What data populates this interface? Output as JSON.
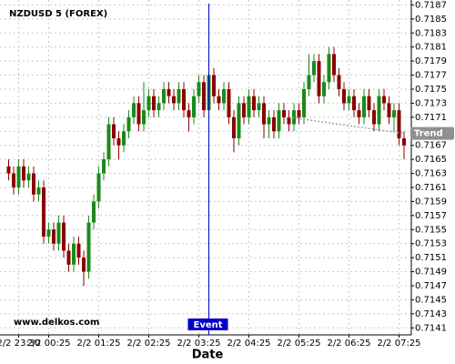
{
  "chart_data": {
    "type": "candlestick",
    "title": "NZDUSD 5 (FOREX)",
    "watermark": "www.delkos.com",
    "x_label": "Date",
    "categories": [
      null,
      null,
      "2/2 23:30",
      null,
      null,
      null,
      null,
      null,
      "2/2 00:25",
      null,
      null,
      null,
      null,
      null,
      null,
      null,
      null,
      null,
      "2/2 01:25",
      null,
      null,
      null,
      null,
      null,
      null,
      null,
      null,
      null,
      "2/2 02:25",
      null,
      null,
      null,
      null,
      null,
      null,
      null,
      null,
      null,
      "2/2 03:25",
      null,
      null,
      null,
      null,
      null,
      null,
      null,
      null,
      null,
      "2/2 04:25",
      null,
      null,
      null,
      null,
      null,
      null,
      null,
      null,
      null,
      "2/2 05:25",
      null,
      null,
      null,
      null,
      null,
      null,
      null,
      null,
      null,
      "2/2 06:25",
      null,
      null,
      null,
      null,
      null,
      null,
      null,
      null,
      null,
      "2/2 07:25",
      null
    ],
    "open": [
      0.7164,
      0.7163,
      0.7161,
      0.7164,
      0.7162,
      0.7163,
      0.716,
      0.7161,
      0.7154,
      0.7155,
      0.7153,
      0.7156,
      0.7152,
      0.715,
      0.7153,
      0.7151,
      0.7149,
      0.7156,
      0.7159,
      0.7163,
      0.7165,
      0.717,
      0.7168,
      0.7167,
      0.7169,
      0.7171,
      0.7173,
      0.717,
      0.7172,
      0.7174,
      0.7172,
      0.7173,
      0.7175,
      0.7174,
      0.7173,
      0.7175,
      0.7172,
      0.7171,
      0.7174,
      0.7176,
      0.7172,
      0.7177,
      0.7174,
      0.7173,
      0.7175,
      0.7171,
      0.7168,
      0.7173,
      0.7171,
      0.7174,
      0.7172,
      0.7173,
      0.717,
      0.7171,
      0.7169,
      0.7172,
      0.7171,
      0.717,
      0.7172,
      0.7171,
      0.7175,
      0.7177,
      0.7179,
      0.7174,
      0.7176,
      0.718,
      0.7177,
      0.7175,
      0.7173,
      0.7174,
      0.7172,
      0.7171,
      0.7174,
      0.7172,
      0.717,
      0.7174,
      0.7173,
      0.7171,
      0.7172,
      0.7168
    ],
    "high": [
      0.7165,
      0.7164,
      0.7165,
      0.7165,
      0.7164,
      0.7164,
      0.7162,
      0.7162,
      0.7156,
      0.7156,
      0.7157,
      0.7157,
      0.7153,
      0.7154,
      0.7154,
      0.7152,
      0.7157,
      0.716,
      0.7164,
      0.7166,
      0.7171,
      0.7171,
      0.7169,
      0.717,
      0.7172,
      0.7174,
      0.7174,
      0.7176,
      0.7175,
      0.7175,
      0.7174,
      0.7176,
      0.7176,
      0.7175,
      0.7176,
      0.7176,
      0.7173,
      0.7175,
      0.7177,
      0.7177,
      0.7178,
      0.7178,
      0.7175,
      0.7176,
      0.7176,
      0.7172,
      0.7174,
      0.7174,
      0.7175,
      0.7175,
      0.7174,
      0.7174,
      0.7172,
      0.7172,
      0.7173,
      0.7173,
      0.7172,
      0.7173,
      0.7173,
      0.7176,
      0.718,
      0.718,
      0.718,
      0.7177,
      0.7181,
      0.7181,
      0.7178,
      0.7176,
      0.7175,
      0.7175,
      0.7173,
      0.7175,
      0.7175,
      0.7173,
      0.7175,
      0.7175,
      0.7174,
      0.7173,
      0.7173,
      0.7169
    ],
    "low": [
      0.7162,
      0.716,
      0.716,
      0.7161,
      0.7161,
      0.7159,
      0.7159,
      0.7153,
      0.7153,
      0.7152,
      0.7152,
      0.7151,
      0.7149,
      0.7149,
      0.715,
      0.7147,
      0.7148,
      0.7155,
      0.7158,
      0.7162,
      0.7164,
      0.7167,
      0.7165,
      0.7166,
      0.7168,
      0.717,
      0.7169,
      0.7169,
      0.7171,
      0.7171,
      0.7171,
      0.7172,
      0.7173,
      0.7172,
      0.7172,
      0.7171,
      0.7169,
      0.717,
      0.7173,
      0.7171,
      0.7171,
      0.7173,
      0.7172,
      0.7172,
      0.717,
      0.7166,
      0.7167,
      0.717,
      0.717,
      0.7171,
      0.7171,
      0.7168,
      0.7168,
      0.7168,
      0.7168,
      0.717,
      0.7169,
      0.7169,
      0.717,
      0.717,
      0.7174,
      0.7176,
      0.7173,
      0.7173,
      0.7175,
      0.7176,
      0.7174,
      0.7172,
      0.7172,
      0.7171,
      0.717,
      0.717,
      0.7171,
      0.7169,
      0.7169,
      0.7172,
      0.717,
      0.7169,
      0.7167,
      0.7165
    ],
    "close": [
      0.7163,
      0.7161,
      0.7164,
      0.7162,
      0.7163,
      0.716,
      0.7161,
      0.7154,
      0.7155,
      0.7153,
      0.7156,
      0.7152,
      0.715,
      0.7153,
      0.7151,
      0.7149,
      0.7156,
      0.7159,
      0.7163,
      0.7165,
      0.717,
      0.7168,
      0.7167,
      0.7169,
      0.7171,
      0.7173,
      0.717,
      0.7172,
      0.7174,
      0.7172,
      0.7173,
      0.7175,
      0.7174,
      0.7173,
      0.7175,
      0.7172,
      0.7171,
      0.7174,
      0.7176,
      0.7172,
      0.7177,
      0.7174,
      0.7173,
      0.7175,
      0.7171,
      0.7168,
      0.7173,
      0.7171,
      0.7174,
      0.7172,
      0.7173,
      0.717,
      0.7171,
      0.7169,
      0.7172,
      0.7171,
      0.717,
      0.7172,
      0.7171,
      0.7175,
      0.7177,
      0.7179,
      0.7174,
      0.7176,
      0.718,
      0.7177,
      0.7175,
      0.7173,
      0.7174,
      0.7172,
      0.7171,
      0.7174,
      0.7172,
      0.717,
      0.7174,
      0.7173,
      0.7171,
      0.7172,
      0.7168,
      0.7167
    ],
    "up_color": "#1a8a1a",
    "down_color": "#8b0000",
    "trend": {
      "name": "Trend",
      "color": "#a0a0a0",
      "values": [
        null,
        null,
        null,
        null,
        null,
        null,
        null,
        null,
        null,
        null,
        null,
        null,
        null,
        null,
        null,
        null,
        null,
        null,
        null,
        null,
        null,
        null,
        null,
        null,
        null,
        null,
        null,
        null,
        null,
        null,
        null,
        null,
        null,
        null,
        null,
        null,
        null,
        null,
        null,
        null,
        null,
        null,
        null,
        null,
        null,
        null,
        null,
        null,
        null,
        null,
        null,
        null,
        null,
        null,
        null,
        null,
        0.7171,
        0.71709,
        0.71708,
        0.71707,
        0.71706,
        0.71705,
        0.71704,
        0.71703,
        0.71702,
        0.71701,
        0.717,
        0.71699,
        0.71698,
        0.71697,
        0.71696,
        0.71695,
        0.71694,
        0.71693,
        0.71692,
        0.71691,
        0.7169,
        0.71689,
        0.71688,
        0.71687
      ]
    },
    "event": {
      "label": "Event",
      "index": 40,
      "color": "#0000cc"
    },
    "ylim": [
      0.714,
      0.71877
    ],
    "yticks": [
      0.7141,
      0.7143,
      0.7145,
      0.7147,
      0.7149,
      0.7151,
      0.7153,
      0.7155,
      0.7157,
      0.7159,
      0.7161,
      0.7163,
      0.7165,
      0.7167,
      0.7169,
      0.7171,
      0.7173,
      0.7175,
      0.7177,
      0.7179,
      0.7181,
      0.7183,
      0.7185,
      0.7187
    ],
    "grid": true
  }
}
